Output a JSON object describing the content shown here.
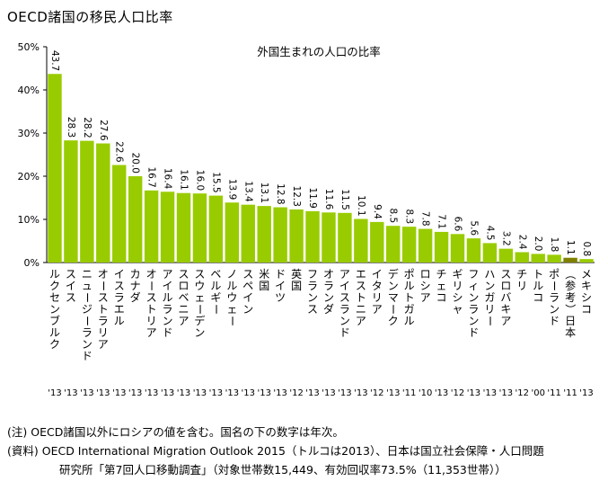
{
  "title": "OECD諸国の移民人口比率",
  "chart_data": {
    "type": "bar",
    "title": "外国生まれの人口の比率",
    "ylim": [
      0,
      50
    ],
    "yticks": [
      "0%",
      "10%",
      "20%",
      "30%",
      "40%",
      "50%"
    ],
    "colors": {
      "bar": "#99cc00",
      "highlight": "#808000"
    },
    "highlight_index": 32,
    "categories": [
      "ルクセンブルク",
      "スイス",
      "ニュージーランド",
      "オーストラリア",
      "イスラエル",
      "カナダ",
      "オーストリア",
      "アイルランド",
      "スロベニア",
      "スウェーデン",
      "ベルギー",
      "ノルウェー",
      "スペイン",
      "米国",
      "ドイツ",
      "英国",
      "フランス",
      "オランダ",
      "アイスランド",
      "エストニア",
      "イタリア",
      "デンマーク",
      "ポルトガル",
      "ロシア",
      "チェコ",
      "ギリシャ",
      "フィンランド",
      "ハンガリー",
      "スロバキア",
      "チリ",
      "トルコ",
      "ポーランド",
      "（参考）日本",
      "メキシコ"
    ],
    "years": [
      "'13",
      "'13",
      "'13",
      "'13",
      "'13",
      "'13",
      "'13",
      "'13",
      "'13",
      "'13",
      "'13",
      "'13",
      "'13",
      "'13",
      "'13",
      "'12",
      "'13",
      "'13",
      "'13",
      "'13",
      "'12",
      "'13",
      "'11",
      "'10",
      "'13",
      "'12",
      "'13",
      "'13",
      "'13",
      "'12",
      "'00",
      "'11",
      "'11",
      "'13"
    ],
    "values": [
      43.7,
      28.3,
      28.2,
      27.6,
      22.6,
      20.0,
      16.7,
      16.4,
      16.1,
      16.0,
      15.5,
      13.9,
      13.4,
      13.1,
      12.8,
      12.3,
      11.9,
      11.6,
      11.5,
      10.1,
      9.4,
      8.5,
      8.3,
      7.8,
      7.1,
      6.6,
      5.6,
      4.5,
      3.2,
      2.4,
      2.0,
      1.8,
      1.1,
      0.8
    ],
    "value_labels": [
      "43.7",
      "28.3",
      "28.2",
      "27.6",
      "22.6",
      "20.0",
      "16.7",
      "16.4",
      "16.1",
      "16.0",
      "15.5",
      "13.9",
      "13.4",
      "13.1",
      "12.8",
      "12.3",
      "11.9",
      "11.6",
      "11.5",
      "10.1",
      "9.4",
      "8.5",
      "8.3",
      "7.8",
      "7.1",
      "6.6",
      "5.6",
      "4.5",
      "3.2",
      "2.4",
      "2.0",
      "1.8",
      "1.1",
      "0.8"
    ]
  },
  "notes": {
    "note1": "(注) OECD諸国以外にロシアの値を含む。国名の下の数字は年次。",
    "source_line1": "(資料) OECD International Migration Outlook 2015（トルコは2013）、日本は国立社会保障・人口問題",
    "source_line2": "研究所「第7回人口移動調査」（対象世帯数15,449、有効回収率73.5%（11,353世帯））"
  }
}
